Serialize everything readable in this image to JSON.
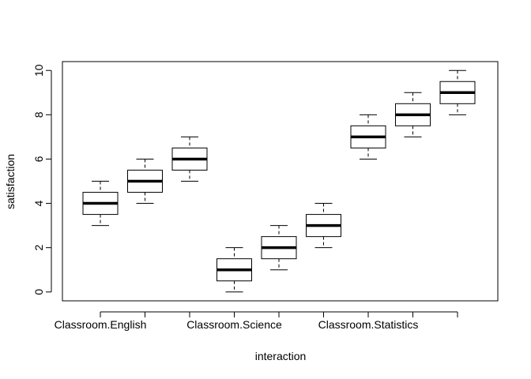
{
  "chart_data": {
    "type": "boxplot",
    "xlabel": "interaction",
    "ylabel": "satisfaction",
    "ylim": [
      -0.4,
      10.4
    ],
    "yticks": [
      0,
      2,
      4,
      6,
      8,
      10
    ],
    "grid": false,
    "legend": "none",
    "categories": [
      "Classroom.English",
      "",
      "",
      "Classroom.Science",
      "",
      "",
      "Classroom.Statistics",
      "",
      ""
    ],
    "boxes": [
      {
        "min": 3,
        "q1": 3.5,
        "median": 4,
        "q3": 4.5,
        "max": 5
      },
      {
        "min": 4,
        "q1": 4.5,
        "median": 5,
        "q3": 5.5,
        "max": 6
      },
      {
        "min": 5,
        "q1": 5.5,
        "median": 6,
        "q3": 6.5,
        "max": 7
      },
      {
        "min": 0,
        "q1": 0.5,
        "median": 1,
        "q3": 1.5,
        "max": 2
      },
      {
        "min": 1,
        "q1": 1.5,
        "median": 2,
        "q3": 2.5,
        "max": 3
      },
      {
        "min": 2,
        "q1": 2.5,
        "median": 3,
        "q3": 3.5,
        "max": 4
      },
      {
        "min": 6,
        "q1": 6.5,
        "median": 7,
        "q3": 7.5,
        "max": 8
      },
      {
        "min": 7,
        "q1": 7.5,
        "median": 8,
        "q3": 8.5,
        "max": 9
      },
      {
        "min": 8,
        "q1": 8.5,
        "median": 9,
        "q3": 9.5,
        "max": 10
      }
    ]
  }
}
